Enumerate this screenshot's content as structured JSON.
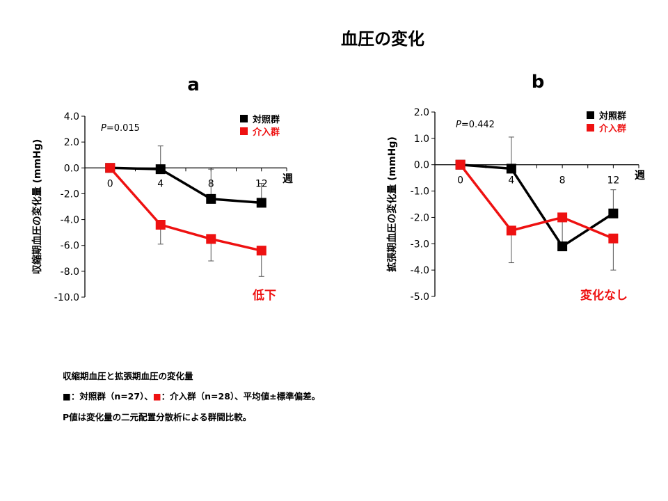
{
  "title": "血圧の変化",
  "notes": [
    "収縮期血圧と拡張期血圧の変化量",
    "■：対照群（n=27）、■：介入群（n=28）、平均値±標準偏差。",
    "P値は変化量の二元配置分散析による群間比較。"
  ],
  "colors": {
    "control": "#000000",
    "intervention": "#ee1111"
  },
  "chart_data": [
    {
      "type": "line",
      "panel_label": "a",
      "ylabel": "収縮期血圧の変化量 (mmHg)",
      "xlabel": "週",
      "x": [
        0,
        4,
        8,
        12
      ],
      "xlim": [
        -2,
        14
      ],
      "ylim": [
        -10,
        4
      ],
      "yticks": [
        4,
        2,
        0,
        -2,
        -4,
        -6,
        -8,
        -10
      ],
      "ytick_labels": [
        "4.0",
        "2.0",
        "0.0",
        "-2.0",
        "-4.0",
        "-6.0",
        "-8.0",
        "-10.0"
      ],
      "xtick_labels": [
        "0",
        "4",
        "8",
        "12"
      ],
      "p_value_label": "P",
      "p_value_text": "=0.015",
      "annotation": "低下",
      "legend_position": "top-right",
      "series": [
        {
          "name": "対照群",
          "values": [
            0,
            -0.1,
            -2.4,
            -2.7
          ],
          "error_upper": [
            null,
            1.7,
            -0.1,
            -1.2
          ],
          "error_lower": [
            null,
            null,
            null,
            null
          ]
        },
        {
          "name": "介入群",
          "values": [
            0,
            -4.4,
            -5.5,
            -6.4
          ],
          "error_upper": [
            null,
            null,
            null,
            null
          ],
          "error_lower": [
            null,
            -5.9,
            -7.2,
            -8.4
          ]
        }
      ]
    },
    {
      "type": "line",
      "panel_label": "b",
      "ylabel": "拡張期血圧の変化量 (mmHg)",
      "xlabel": "週",
      "x": [
        0,
        4,
        8,
        12
      ],
      "xlim": [
        -2,
        14
      ],
      "ylim": [
        -5,
        2
      ],
      "yticks": [
        2,
        1,
        0,
        -1,
        -2,
        -3,
        -4,
        -5
      ],
      "ytick_labels": [
        "2.0",
        "1.0",
        "0.0",
        "-1.0",
        "-2.0",
        "-3.0",
        "-4.0",
        "-5.0"
      ],
      "xtick_labels": [
        "0",
        "4",
        "8",
        "12"
      ],
      "p_value_label": "P",
      "p_value_text": "=0.442",
      "annotation": "変化なし",
      "legend_position": "top-right",
      "series": [
        {
          "name": "対照群",
          "values": [
            0,
            -0.15,
            -3.1,
            -1.85
          ],
          "error_upper": [
            null,
            1.05,
            -2.0,
            -0.95
          ],
          "error_lower": [
            null,
            null,
            null,
            null
          ]
        },
        {
          "name": "介入群",
          "values": [
            0,
            -2.5,
            -2.0,
            -2.8
          ],
          "error_upper": [
            null,
            null,
            null,
            null
          ],
          "error_lower": [
            null,
            -3.72,
            null,
            -4.0
          ]
        }
      ]
    }
  ]
}
